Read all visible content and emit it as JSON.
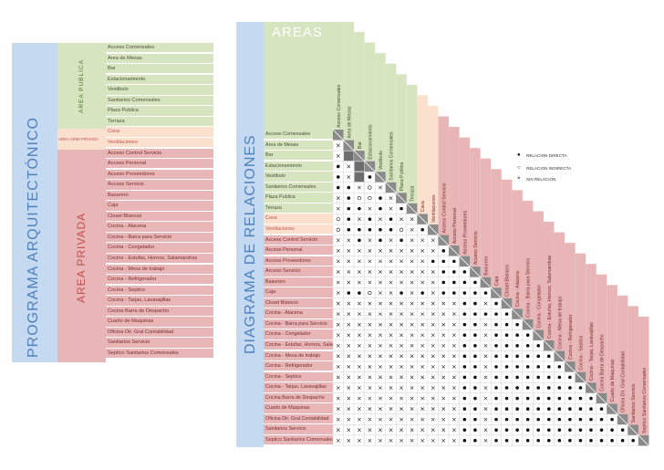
{
  "left_panel": {
    "title": "PROGRAMA ARQUITECTÓNICO",
    "area_publica": "AREA PUBLICA",
    "area_semiprivada": "AREA SEMI PRIVADA",
    "area_privada": "AREA PRIVADA"
  },
  "right_panel": {
    "title": "DIAGRAMA DE RELACIONES",
    "areas_title": "AREAS"
  },
  "legend": {
    "directa": "RELACION DIRECTA",
    "indirecta": "RELACION INDIRECTA",
    "sin": "SIN RELACION"
  },
  "colors": {
    "publica": "#d6e5bf",
    "semiprivada": "#fbe1cd",
    "privada": "#e9b6b7",
    "title_band": "#c5d9f1"
  },
  "spaces": [
    {
      "name": "Acceso Comensales",
      "group": "publica"
    },
    {
      "name": "Area de Mesas",
      "group": "publica"
    },
    {
      "name": "Bar",
      "group": "publica"
    },
    {
      "name": "Estacionamiento",
      "group": "publica"
    },
    {
      "name": "Vestibulo",
      "group": "publica"
    },
    {
      "name": "Sanitarios Comensales",
      "group": "publica"
    },
    {
      "name": "Plaza Publica",
      "group": "publica"
    },
    {
      "name": "Terraza",
      "group": "publica"
    },
    {
      "name": "Cava",
      "group": "semiprivada"
    },
    {
      "name": "Ventilaciones",
      "group": "semiprivada"
    },
    {
      "name": "Acceso Control Servicio",
      "group": "privada"
    },
    {
      "name": "Acceso Personal",
      "group": "privada"
    },
    {
      "name": "Acceso Proveedores",
      "group": "privada"
    },
    {
      "name": "Acceso Servicio",
      "group": "privada"
    },
    {
      "name": "Basurero",
      "group": "privada"
    },
    {
      "name": "Caja",
      "group": "privada"
    },
    {
      "name": "Closet Blancos",
      "group": "privada"
    },
    {
      "name": "Cocina - Alacena",
      "group": "privada"
    },
    {
      "name": "Cocina - Barra para Servicio",
      "group": "privada"
    },
    {
      "name": "Cocina - Congelador",
      "group": "privada"
    },
    {
      "name": "Cocina - Estufas, Hornos, Salamandras",
      "group": "privada"
    },
    {
      "name": "Cocina - Mesa de trabajo",
      "group": "privada"
    },
    {
      "name": "Cocina - Refrigerador",
      "group": "privada"
    },
    {
      "name": "Cocina - Septico",
      "group": "privada"
    },
    {
      "name": "Cocina - Tarjas, Lavavajillas",
      "group": "privada"
    },
    {
      "name": "Cocina Barra de Despacho",
      "group": "privada"
    },
    {
      "name": "Cuarto de Maquinas",
      "group": "privada"
    },
    {
      "name": "Oficina Dir. Gral Contabilidad",
      "group": "privada"
    },
    {
      "name": "Sanitarios Servicio",
      "group": "privada"
    },
    {
      "name": "Septico Sanitarios Comensales",
      "group": "privada"
    }
  ],
  "matrix_codes": [
    "",
    "x",
    "x#",
    "●x#",
    "●x#●",
    "●●x○x",
    "x●○○●x",
    "x●●x●x●",
    "○●x●x●xx",
    "○●●●●●○x●",
    "xx●x●x●xxx",
    "xxxxxxxxxx●",
    "xxxxxxxxx●●●",
    "xxxxxxxxxx●●●",
    "xxxxxxxxxx●●●●",
    "x●●○xx●x●x●●●●●",
    "xxxxxxxxxxxx●●x●",
    "xxxxxxxxxxxx●●●●●",
    "xxxxxxxxxxxx●●x●●●",
    "xxxxxxxxxxxx●●x●●●●",
    "xxxxxxxxxxxx●●x●●●●●",
    "xxxxxxxxxxxx●●x●●●●●●",
    "xxxxxxxxxxxx●●x●●●●●●●",
    "xxxxxxxxxxxx●●x●●●●●●●●",
    "xxxxxxxxxxxx●●x●●●●●●●●●",
    "xxxxxxxxxxxx●●x●●●●●●●●●●",
    "xxxxxxxxxxxx●●x●●●●●●●●●●●",
    "xxxxxxxxxxxx●●x●●●●●●●●●●●●",
    "xxxxxxxxxxxx●●x●●●●●●●●●●●●●",
    "xxxxxxxxxxxx●●x●●●●●●●●●●●●●●"
  ]
}
